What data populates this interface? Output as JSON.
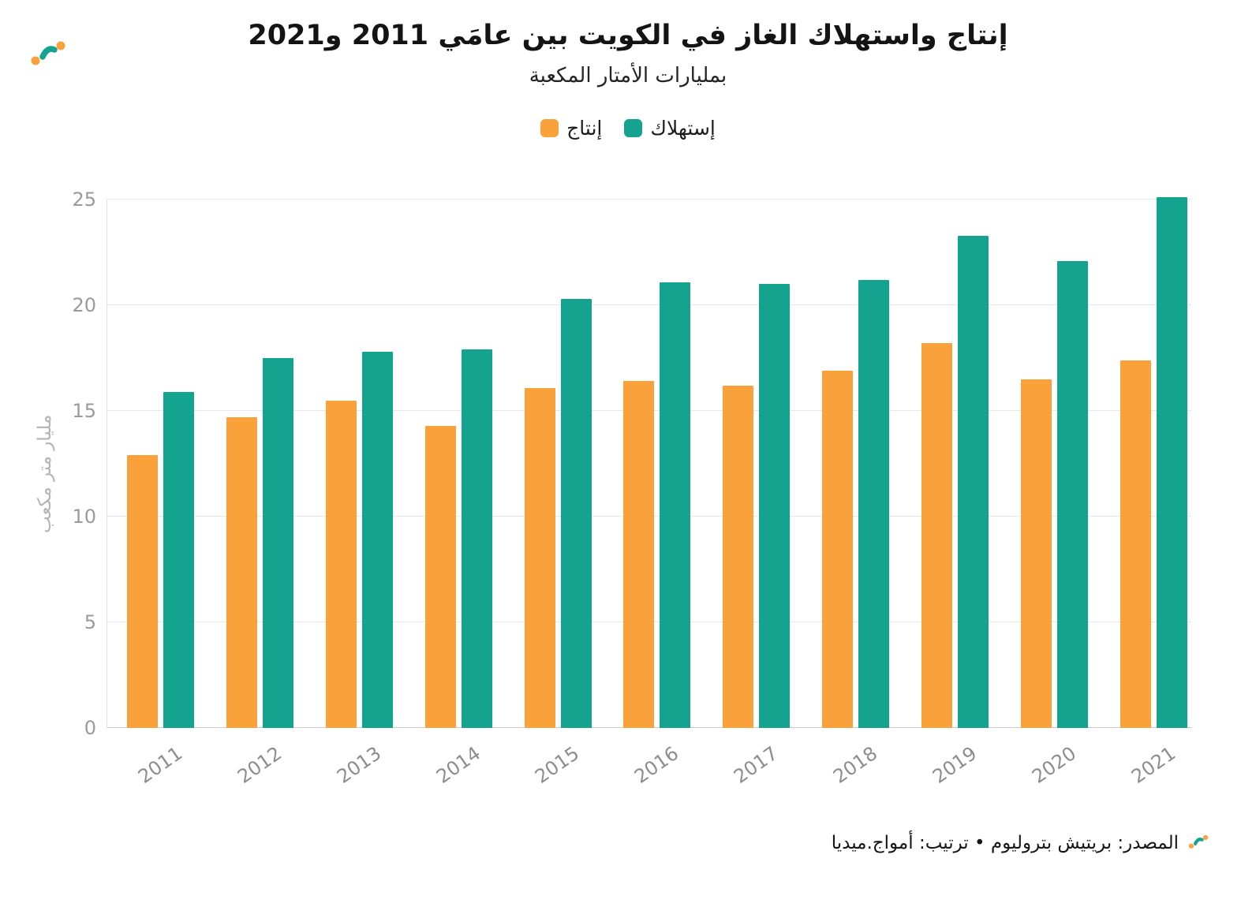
{
  "header": {
    "title": "إنتاج واستهلاك الغاز في الكويت بين عامَي 2011 و2021",
    "subtitle": "بمليارات الأمتار المكعبة"
  },
  "footer": {
    "credit": "المصدر: بريتيش بتروليوم • ترتيب: أمواج.ميديا"
  },
  "colors": {
    "production_orange": "#F9A13B",
    "consumption_teal": "#14A38F"
  },
  "chart_data": {
    "type": "bar",
    "title": "إنتاج واستهلاك الغاز في الكويت بين عامَي 2011 و2021",
    "subtitle": "بمليارات الأمتار المكعبة",
    "categories": [
      "2011",
      "2012",
      "2013",
      "2014",
      "2015",
      "2016",
      "2017",
      "2018",
      "2019",
      "2020",
      "2021"
    ],
    "series": [
      {
        "key": "production",
        "name": "إنتاج",
        "color": "#F9A13B",
        "values": [
          12.9,
          14.7,
          15.5,
          14.3,
          16.1,
          16.4,
          16.2,
          16.9,
          18.2,
          16.5,
          17.4
        ]
      },
      {
        "key": "consumption",
        "name": "إستهلاك",
        "color": "#14A38F",
        "values": [
          15.9,
          17.5,
          17.8,
          17.9,
          20.3,
          21.1,
          21.0,
          21.2,
          23.3,
          22.1,
          25.1
        ]
      }
    ],
    "xlabel": "",
    "ylabel": "مليار متر مكعب",
    "yticks": [
      0,
      5,
      10,
      15,
      20,
      25
    ],
    "ylim": [
      0,
      25
    ],
    "grid": true,
    "legend_position": "top"
  }
}
